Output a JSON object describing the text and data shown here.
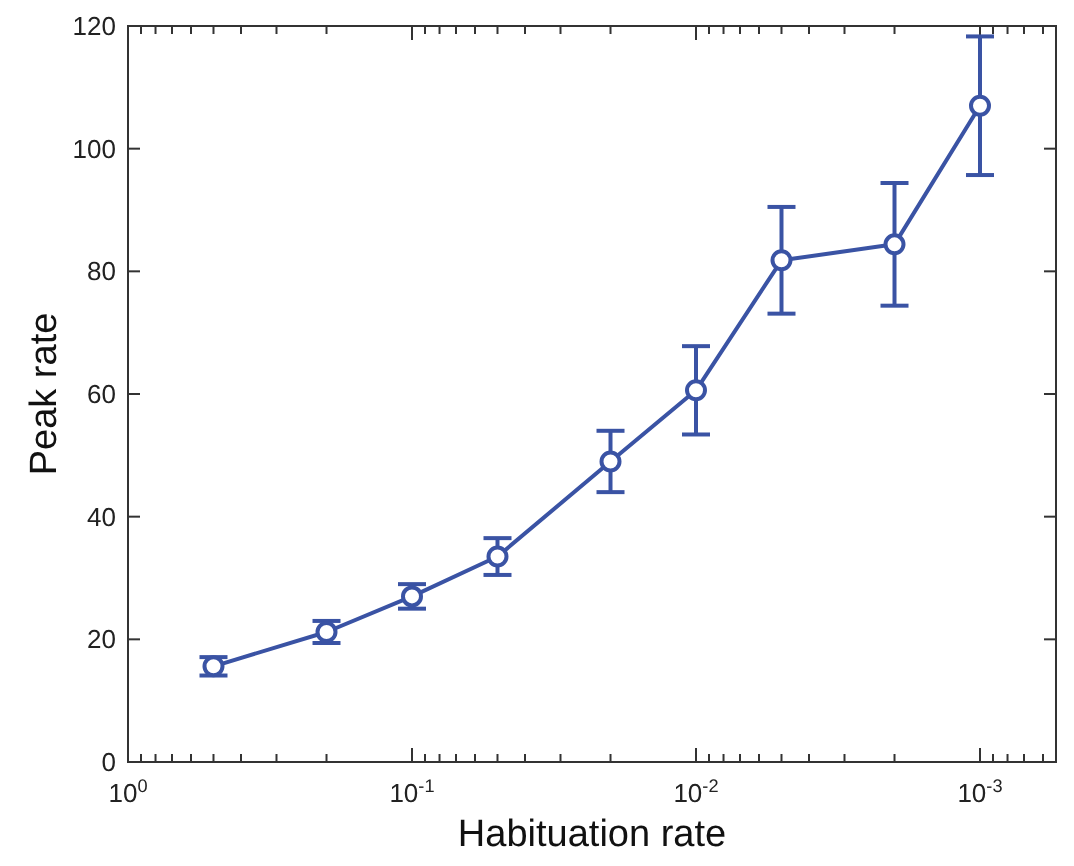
{
  "chart_data": {
    "type": "line",
    "xlabel": "Habituation rate",
    "ylabel": "Peak rate",
    "log": "x",
    "marker": "circle",
    "line_style": "solid",
    "grid": false,
    "x": [
      0.5,
      0.2,
      0.1,
      0.05,
      0.02,
      0.01,
      0.005,
      0.002,
      0.001
    ],
    "series": [
      {
        "color": "#3a53a4",
        "values": [
          15.6,
          21.2,
          27,
          33.5,
          49,
          60.6,
          81.8,
          84.4,
          107
        ],
        "errors": [
          1.5,
          1.8,
          2,
          3,
          5,
          7.2,
          8.7,
          10,
          11.3
        ]
      }
    ],
    "xlim": [
      1,
      0.00054
    ],
    "xticks": [
      {
        "value": 1,
        "label": "10$^{0}$"
      },
      {
        "value": 0.9,
        "label": null
      },
      {
        "value": 0.8,
        "label": null
      },
      {
        "value": 0.7,
        "label": null
      },
      {
        "value": 0.6,
        "label": null
      },
      {
        "value": 0.5,
        "label": null
      },
      {
        "value": 0.4,
        "label": null
      },
      {
        "value": 0.3,
        "label": null
      },
      {
        "value": 0.2,
        "label": null
      },
      {
        "value": 0.1,
        "label": "10$^{-1}$"
      },
      {
        "value": 0.09,
        "label": null
      },
      {
        "value": 0.08,
        "label": null
      },
      {
        "value": 0.07,
        "label": null
      },
      {
        "value": 0.06,
        "label": null
      },
      {
        "value": 0.05,
        "label": null
      },
      {
        "value": 0.04,
        "label": null
      },
      {
        "value": 0.03,
        "label": null
      },
      {
        "value": 0.02,
        "label": null
      },
      {
        "value": 0.01,
        "label": "10$^{-2}$"
      },
      {
        "value": 0.009,
        "label": null
      },
      {
        "value": 0.008,
        "label": null
      },
      {
        "value": 0.007,
        "label": null
      },
      {
        "value": 0.006,
        "label": null
      },
      {
        "value": 0.005,
        "label": null
      },
      {
        "value": 0.004,
        "label": null
      },
      {
        "value": 0.003,
        "label": null
      },
      {
        "value": 0.002,
        "label": null
      },
      {
        "value": 0.001,
        "label": "10$^{-3}$"
      },
      {
        "value": 0.0009,
        "label": null
      },
      {
        "value": 0.0008,
        "label": null
      },
      {
        "value": 0.0007,
        "label": null
      },
      {
        "value": 0.0006,
        "label": null
      }
    ],
    "ylim": [
      0,
      120
    ],
    "yticks": [
      0,
      20,
      40,
      60,
      80,
      100,
      120
    ]
  }
}
